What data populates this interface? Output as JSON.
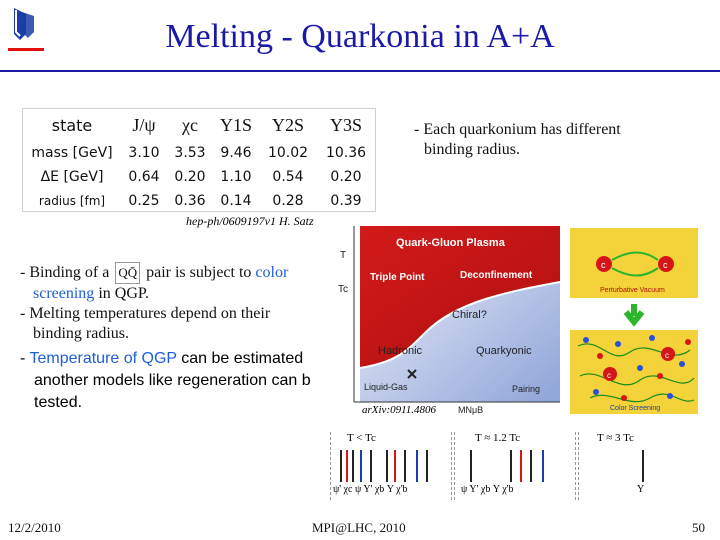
{
  "title": "Melting - Quarkonia in A+A",
  "table": {
    "header": [
      "state",
      "J/ψ",
      "χc",
      "Υ1S",
      "Υ2S",
      "Υ3S"
    ],
    "rows": [
      {
        "label": "mass [GeV]",
        "values": [
          "3.10",
          "3.53",
          "9.46",
          "10.02",
          "10.36"
        ]
      },
      {
        "label": "ΔE [GeV]",
        "values": [
          "0.64",
          "0.20",
          "1.10",
          "0.54",
          "0.20"
        ]
      },
      {
        "label": "radius [fm]",
        "values": [
          "0.25",
          "0.36",
          "0.14",
          "0.28",
          "0.39"
        ]
      }
    ]
  },
  "table_reference": "hep-ph/0609197v1 H. Satz",
  "right_note": [
    "- Each quarkonium has different",
    "binding radius."
  ],
  "bullets": {
    "b1_pre": "- Binding of a",
    "b1_qq": "QQ̄",
    "b1_post": "pair is subject to",
    "b1_color": "color",
    "b1_line2_blue": "screening",
    "b1_line2_rest": "in QGP.",
    "b2_line1": "- Melting temperatures depend on their",
    "b2_line2": "binding radius.",
    "b3_pre": "- ",
    "b3_blue": "Temperature of QGP",
    "b3_rest": "can be estimated",
    "b3_line2": "another models like regeneration can b",
    "b3_line3": "tested."
  },
  "phase": {
    "qgp": "Quark-Gluon Plasma",
    "triple": "Triple Point",
    "deconf": "Deconfinement",
    "chiral": "Chiral?",
    "hadronic": "Hadronic",
    "quarkyonic": "Quarkyonic",
    "liquid_gas": "Liquid-Gas",
    "pairing": "Pairing",
    "T": "T",
    "Tc": "Tc",
    "muB": "μB",
    "MN": "MN"
  },
  "phase_reference": "arXiv:0911.4806",
  "screening": {
    "top_caption": "Perturbative Vacuum",
    "bottom_caption": "Color Screening",
    "charm": "c"
  },
  "spectra": {
    "panels": [
      "T < Tc",
      "T ≈ 1.2 Tc",
      "T ≈ 3 Tc"
    ],
    "labels1": "ψ' χc ψ  Υ' χb Υ χ'b",
    "labels2": "ψ   Υ' χb Υ χ'b",
    "labels3": "Υ"
  },
  "footer": {
    "date": "12/2/2010",
    "venue": "MPI@LHC, 2010",
    "page": "50"
  },
  "colors": {
    "title": "#1a1aa6",
    "highlight": "#1f5ed8",
    "qgp_panel": "#c31515",
    "hadronic_panel": "#f5f5fb"
  }
}
